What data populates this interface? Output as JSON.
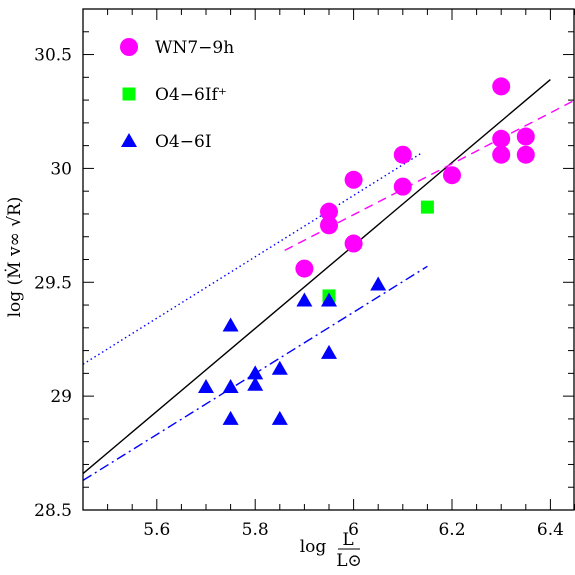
{
  "chart_data": {
    "type": "scatter",
    "title": "",
    "xlabel": "log L/L⊙",
    "ylabel": "log (Ṁ v∞ √R)",
    "xlim": [
      5.45,
      6.45
    ],
    "ylim": [
      28.5,
      30.7
    ],
    "x_ticks": [
      5.6,
      5.8,
      6,
      6.2,
      6.4
    ],
    "x_tick_labels": [
      "5.6",
      "5.8",
      "6",
      "6.2",
      "6.4"
    ],
    "y_ticks": [
      28.5,
      29,
      29.5,
      30,
      30.5
    ],
    "y_tick_labels": [
      "28.5",
      "29",
      "29.5",
      "30",
      "30.5"
    ],
    "grid": false,
    "legend_position": "top-left",
    "series": [
      {
        "name": "WN7−9h",
        "marker": "circle",
        "color": "#ff00ff",
        "points": [
          [
            5.9,
            29.56
          ],
          [
            5.95,
            29.75
          ],
          [
            5.95,
            29.81
          ],
          [
            6.0,
            29.67
          ],
          [
            6.0,
            29.95
          ],
          [
            6.1,
            29.92
          ],
          [
            6.1,
            30.06
          ],
          [
            6.2,
            29.97
          ],
          [
            6.3,
            30.06
          ],
          [
            6.3,
            30.13
          ],
          [
            6.3,
            30.36
          ],
          [
            6.35,
            30.06
          ],
          [
            6.35,
            30.14
          ]
        ]
      },
      {
        "name": "O4−6If⁺",
        "marker": "square",
        "color": "#00ff00",
        "points": [
          [
            5.95,
            29.44
          ],
          [
            6.15,
            29.83
          ]
        ]
      },
      {
        "name": "O4−6I",
        "marker": "triangle",
        "color": "#0000ff",
        "points": [
          [
            5.7,
            29.04
          ],
          [
            5.75,
            28.9
          ],
          [
            5.75,
            29.04
          ],
          [
            5.75,
            29.31
          ],
          [
            5.8,
            29.05
          ],
          [
            5.8,
            29.1
          ],
          [
            5.85,
            28.9
          ],
          [
            5.85,
            29.12
          ],
          [
            5.9,
            29.42
          ],
          [
            5.95,
            29.19
          ],
          [
            5.95,
            29.42
          ],
          [
            6.05,
            29.49
          ]
        ]
      }
    ],
    "fit_lines": [
      {
        "style": "solid",
        "color": "#000000",
        "x": [
          5.45,
          6.4
        ],
        "y": [
          28.66,
          30.39
        ]
      },
      {
        "style": "dashed",
        "color": "#ff00ff",
        "x": [
          5.86,
          6.45
        ],
        "y": [
          29.64,
          30.3
        ]
      },
      {
        "style": "dotted",
        "color": "#0000ff",
        "x": [
          5.45,
          6.14
        ],
        "y": [
          29.14,
          30.07
        ]
      },
      {
        "style": "dashdot",
        "color": "#0000ff",
        "x": [
          5.45,
          6.15
        ],
        "y": [
          28.63,
          29.57
        ]
      }
    ]
  }
}
